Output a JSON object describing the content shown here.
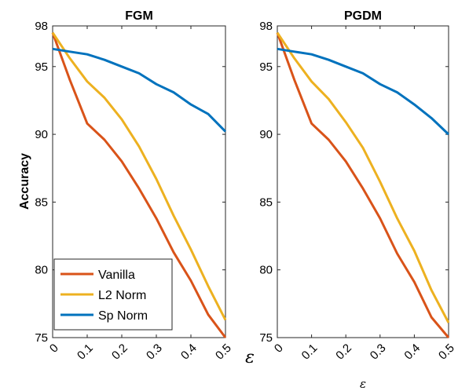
{
  "chart_data": [
    {
      "type": "line",
      "title": "FGM",
      "ylabel": "Accuracy",
      "xlabel": "",
      "x": [
        0,
        0.05,
        0.1,
        0.15,
        0.2,
        0.25,
        0.3,
        0.35,
        0.4,
        0.45,
        0.5
      ],
      "x_ticks": [
        "0",
        "0.1",
        "0.2",
        "0.3",
        "0.4",
        "0.5"
      ],
      "y_ticks": [
        "75",
        "80",
        "85",
        "90",
        "95",
        "98"
      ],
      "xlim": [
        0,
        0.5
      ],
      "ylim": [
        75,
        98
      ],
      "grid": false,
      "legend": "bottom-left",
      "series": [
        {
          "name": "Vanilla",
          "color": "#D95319",
          "values": [
            97.5,
            94.0,
            90.8,
            89.6,
            88.0,
            86.0,
            83.8,
            81.3,
            79.2,
            76.7,
            75.0
          ]
        },
        {
          "name": "L2 Norm",
          "color": "#EDB120",
          "values": [
            97.5,
            95.6,
            93.9,
            92.7,
            91.1,
            89.1,
            86.7,
            84.0,
            81.5,
            78.8,
            76.3
          ]
        },
        {
          "name": "Sp Norm",
          "color": "#0072BD",
          "values": [
            96.3,
            96.1,
            95.9,
            95.5,
            95.0,
            94.5,
            93.7,
            93.1,
            92.2,
            91.5,
            90.2
          ]
        }
      ]
    },
    {
      "type": "line",
      "title": "PGDM",
      "ylabel": "",
      "xlabel": "ε",
      "x": [
        0,
        0.05,
        0.1,
        0.15,
        0.2,
        0.25,
        0.3,
        0.35,
        0.4,
        0.45,
        0.5
      ],
      "x_ticks": [
        "0",
        "0.1",
        "0.2",
        "0.3",
        "0.4",
        "0.5"
      ],
      "y_ticks": [
        "75",
        "80",
        "85",
        "90",
        "95",
        "98"
      ],
      "xlim": [
        0,
        0.5
      ],
      "ylim": [
        75,
        98
      ],
      "grid": false,
      "series": [
        {
          "name": "Vanilla",
          "color": "#D95319",
          "values": [
            97.5,
            94.0,
            90.8,
            89.6,
            88.0,
            86.0,
            83.8,
            81.2,
            79.1,
            76.5,
            75.0
          ]
        },
        {
          "name": "L2 Norm",
          "color": "#EDB120",
          "values": [
            97.5,
            95.6,
            93.9,
            92.6,
            90.9,
            89.0,
            86.5,
            83.8,
            81.4,
            78.5,
            76.1
          ]
        },
        {
          "name": "Sp Norm",
          "color": "#0072BD",
          "values": [
            96.3,
            96.1,
            95.9,
            95.5,
            95.0,
            94.5,
            93.7,
            93.1,
            92.2,
            91.2,
            90.0
          ]
        }
      ]
    }
  ],
  "labels": {
    "left_epsilon": "ε"
  }
}
